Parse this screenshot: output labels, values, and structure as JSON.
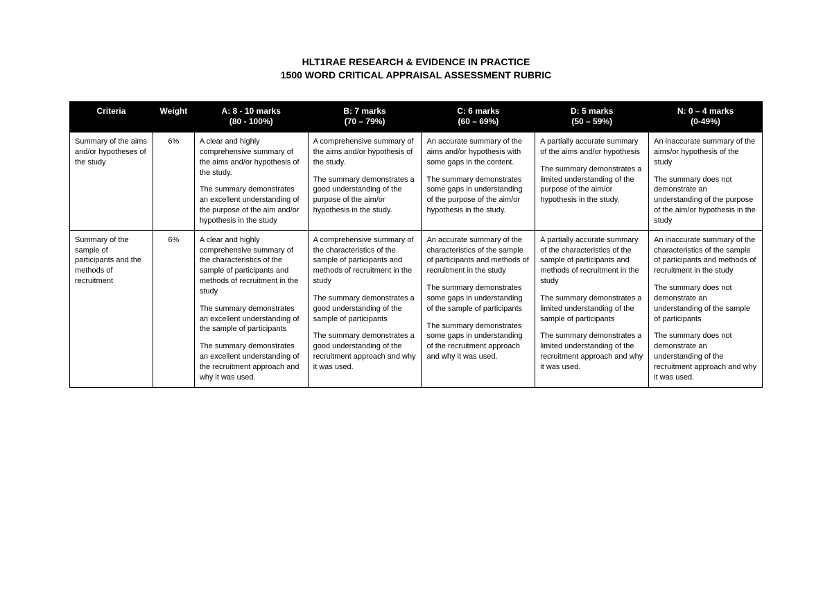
{
  "title_line1": "HLT1RAE RESEARCH & EVIDENCE IN PRACTICE",
  "title_line2": "1500 WORD CRITICAL APPRAISAL ASSESSMENT RUBRIC",
  "columns": {
    "criteria": "Criteria",
    "weight": "Weight",
    "a_line1": "A: 8 - 10 marks",
    "a_line2": "(80 - 100%)",
    "b_line1": "B: 7 marks",
    "b_line2": "(70 – 79%)",
    "c_line1": "C: 6 marks",
    "c_line2": "(60 – 69%)",
    "d_line1": "D: 5 marks",
    "d_line2": "(50 – 59%)",
    "n_line1": "N: 0 – 4 marks",
    "n_line2": "(0-49%)"
  },
  "rows": [
    {
      "criteria": "Summary of the aims and/or hypotheses of the study",
      "weight": "6%",
      "a": [
        "A clear and highly comprehensive summary of the aims and/or hypothesis of the study.",
        "The summary demonstrates an excellent understanding of the purpose of the aim and/or hypothesis in the study"
      ],
      "b": [
        "A comprehensive summary of the aims and/or hypothesis of the study.",
        "The summary demonstrates a good understanding of the purpose of the aim/or hypothesis in the study."
      ],
      "c": [
        "An accurate summary of the aims and/or hypothesis with some gaps in the content.",
        "The summary demonstrates some gaps in understanding of the purpose of the aim/or hypothesis in the study."
      ],
      "d": [
        "A partially accurate summary of the aims and/or hypothesis",
        "The summary demonstrates a limited understanding of the purpose of the aim/or hypothesis in the study."
      ],
      "n": [
        "An inaccurate summary of the aims/or hypothesis of the study",
        "The summary does not demonstrate an understanding of the purpose of the aim/or hypothesis in the study"
      ]
    },
    {
      "criteria": "Summary of the sample of participants and the methods of recruitment",
      "weight": "6%",
      "a": [
        "A clear and highly comprehensive summary of the characteristics of the sample of participants and methods of recruitment in the study",
        "The summary demonstrates an excellent understanding of the sample of participants",
        "The summary demonstrates an excellent understanding of the recruitment approach and why it was used."
      ],
      "b": [
        "A comprehensive summary of the characteristics of the sample of participants and methods of recruitment in the study",
        "The summary demonstrates a good understanding of the sample of participants",
        "The summary demonstrates a good understanding of the recruitment approach and why it was used."
      ],
      "c": [
        "An accurate summary of the characteristics of the sample of participants and methods of recruitment in the study",
        "The summary demonstrates some gaps in understanding of the sample of participants",
        "The summary demonstrates some gaps in understanding of the recruitment approach and why it was used."
      ],
      "d": [
        "A partially accurate summary of the characteristics of the sample of participants and methods of recruitment in the study",
        "The summary demonstrates a limited understanding of the sample of participants",
        "The summary demonstrates a limited understanding of the recruitment approach and why it was used."
      ],
      "n": [
        "An inaccurate summary of the characteristics of the sample of participants and methods of recruitment in the study",
        "The summary does not demonstrate an understanding of the sample of participants",
        "The summary does not demonstrate an understanding of the recruitment approach and why it was used."
      ]
    }
  ],
  "style": {
    "type": "table",
    "background_color": "#ffffff",
    "header_bg": "#000000",
    "header_fg": "#ffffff",
    "border_color": "#000000",
    "body_text_color": "#000000",
    "title_fontsize_pt": 11,
    "header_fontsize_pt": 9,
    "cell_fontsize_pt": 8,
    "column_widths_pct": [
      12,
      6,
      16.4,
      16.4,
      16.4,
      16.4,
      16.4
    ],
    "font_family": "Arial"
  }
}
